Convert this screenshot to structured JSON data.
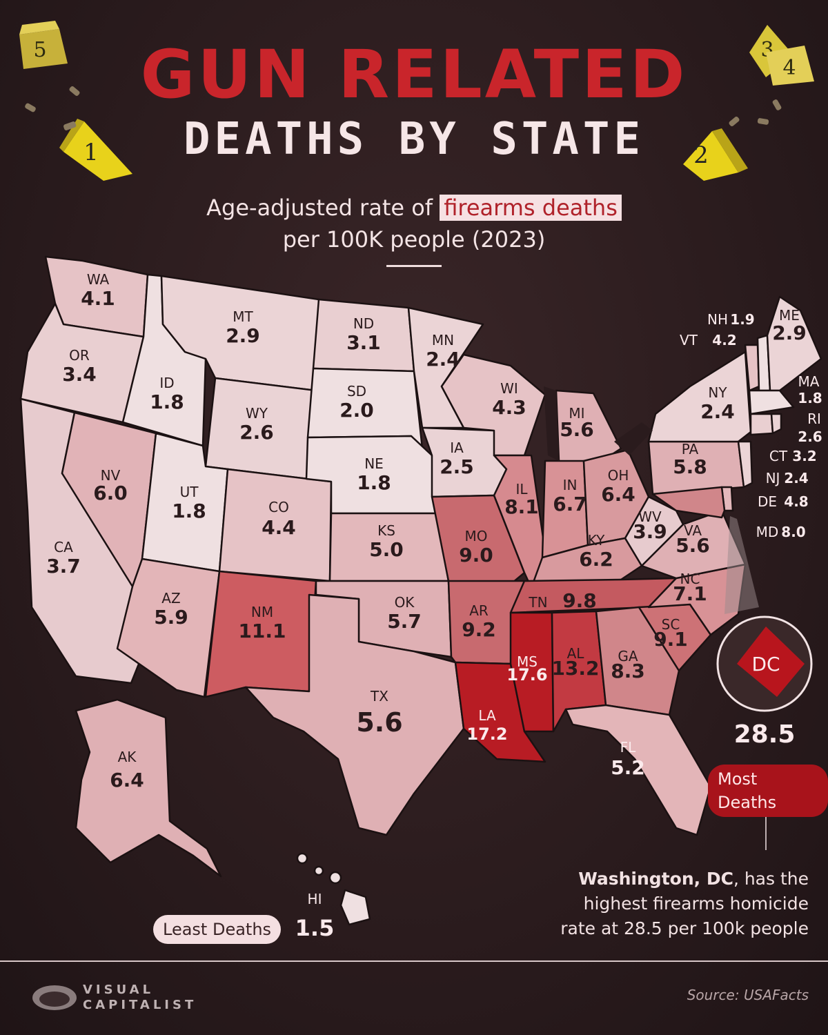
{
  "title_line1": "GUN RELATED",
  "title_line2": "DEATHS BY STATE",
  "subtitle_pre": "Age-adjusted rate of ",
  "subtitle_highlight": "firearms deaths",
  "subtitle_line2": "per 100K people (2023)",
  "least_label": "Least Deaths",
  "most_label": "Most Deaths",
  "dc_code": "DC",
  "dc_value": "28.5",
  "hi_code": "HI",
  "hi_value": "1.5",
  "note_bold": "Washington, DC",
  "note_rest": ", has the highest firearms homicide rate at 28.5 per 100k people",
  "source": "Source: USAFacts",
  "brand_line1": "VISUAL",
  "brand_line2": "CAPITALIST",
  "marker_numbers": [
    "5",
    "1",
    "2",
    "3",
    "4"
  ],
  "colors": {
    "background": "#2b1c1e",
    "title_red": "#c9252b",
    "lowest_fill": "#eddadc",
    "highest_fill": "#b8151d"
  },
  "states": [
    {
      "code": "WA",
      "value": "4.1"
    },
    {
      "code": "OR",
      "value": "3.4"
    },
    {
      "code": "CA",
      "value": "3.7"
    },
    {
      "code": "ID",
      "value": "1.8"
    },
    {
      "code": "NV",
      "value": "6.0"
    },
    {
      "code": "MT",
      "value": "2.9"
    },
    {
      "code": "WY",
      "value": "2.6"
    },
    {
      "code": "UT",
      "value": "1.8"
    },
    {
      "code": "AZ",
      "value": "5.9"
    },
    {
      "code": "CO",
      "value": "4.4"
    },
    {
      "code": "NM",
      "value": "11.1"
    },
    {
      "code": "ND",
      "value": "3.1"
    },
    {
      "code": "SD",
      "value": "2.0"
    },
    {
      "code": "NE",
      "value": "1.8"
    },
    {
      "code": "KS",
      "value": "5.0"
    },
    {
      "code": "OK",
      "value": "5.7"
    },
    {
      "code": "TX",
      "value": "5.6"
    },
    {
      "code": "MN",
      "value": "2.4"
    },
    {
      "code": "IA",
      "value": "2.5"
    },
    {
      "code": "MO",
      "value": "9.0"
    },
    {
      "code": "AR",
      "value": "9.2"
    },
    {
      "code": "LA",
      "value": "17.2"
    },
    {
      "code": "WI",
      "value": "4.3"
    },
    {
      "code": "IL",
      "value": "8.1"
    },
    {
      "code": "MI",
      "value": "5.6"
    },
    {
      "code": "IN",
      "value": "6.7"
    },
    {
      "code": "OH",
      "value": "6.4"
    },
    {
      "code": "KY",
      "value": "6.2"
    },
    {
      "code": "TN",
      "value": "9.8"
    },
    {
      "code": "MS",
      "value": "17.6"
    },
    {
      "code": "AL",
      "value": "13.2"
    },
    {
      "code": "GA",
      "value": "8.3"
    },
    {
      "code": "FL",
      "value": "5.2"
    },
    {
      "code": "SC",
      "value": "9.1"
    },
    {
      "code": "NC",
      "value": "7.1"
    },
    {
      "code": "VA",
      "value": "5.6"
    },
    {
      "code": "WV",
      "value": "3.9"
    },
    {
      "code": "PA",
      "value": "5.8"
    },
    {
      "code": "NY",
      "value": "2.4"
    },
    {
      "code": "VT",
      "value": "4.2"
    },
    {
      "code": "NH",
      "value": "1.9"
    },
    {
      "code": "ME",
      "value": "2.9"
    },
    {
      "code": "MA",
      "value": "1.8"
    },
    {
      "code": "RI",
      "value": "2.6"
    },
    {
      "code": "CT",
      "value": "3.2"
    },
    {
      "code": "NJ",
      "value": "2.4"
    },
    {
      "code": "DE",
      "value": "4.8"
    },
    {
      "code": "MD",
      "value": "8.0"
    },
    {
      "code": "AK",
      "value": "6.4"
    }
  ]
}
